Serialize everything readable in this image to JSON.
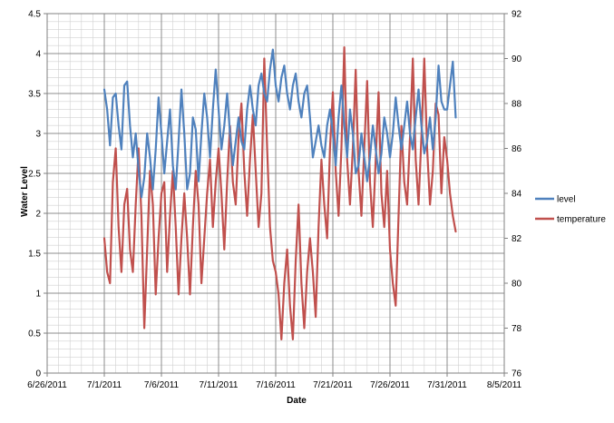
{
  "chart_data": {
    "type": "line",
    "title": "",
    "xlabel": "Date",
    "ylabel": "Water Level",
    "y2label": "",
    "grid": true,
    "legend_placement": "right",
    "xlim": [
      "6/26/2011",
      "8/5/2011"
    ],
    "ylim": [
      0,
      4.5
    ],
    "y2lim": [
      76,
      92
    ],
    "x_ticks": [
      "6/26/2011",
      "7/1/2011",
      "7/6/2011",
      "7/11/2011",
      "7/16/2011",
      "7/21/2011",
      "7/26/2011",
      "7/31/2011",
      "8/5/2011"
    ],
    "y_ticks": [
      "0",
      "0.5",
      "1",
      "1.5",
      "2",
      "2.5",
      "3",
      "3.5",
      "4",
      "4.5"
    ],
    "y2_ticks": [
      "76",
      "78",
      "80",
      "82",
      "84",
      "86",
      "88",
      "90",
      "92"
    ],
    "series": [
      {
        "name": "level",
        "axis": "left",
        "color": "#4F81BD",
        "points": [
          [
            "7/1/2011 00:00",
            3.55
          ],
          [
            "7/1/2011 06:00",
            3.3
          ],
          [
            "7/1/2011 12:00",
            2.85
          ],
          [
            "7/1/2011 18:00",
            3.45
          ],
          [
            "7/2/2011 00:00",
            3.5
          ],
          [
            "7/2/2011 06:00",
            3.1
          ],
          [
            "7/2/2011 12:00",
            2.8
          ],
          [
            "7/2/2011 18:00",
            3.6
          ],
          [
            "7/3/2011 00:00",
            3.65
          ],
          [
            "7/3/2011 06:00",
            3.1
          ],
          [
            "7/3/2011 12:00",
            2.7
          ],
          [
            "7/3/2011 18:00",
            3.0
          ],
          [
            "7/4/2011 00:00",
            2.55
          ],
          [
            "7/4/2011 06:00",
            2.2
          ],
          [
            "7/4/2011 12:00",
            2.45
          ],
          [
            "7/4/2011 18:00",
            3.0
          ],
          [
            "7/5/2011 00:00",
            2.7
          ],
          [
            "7/5/2011 06:00",
            2.3
          ],
          [
            "7/5/2011 12:00",
            2.8
          ],
          [
            "7/5/2011 18:00",
            3.45
          ],
          [
            "7/6/2011 00:00",
            3.0
          ],
          [
            "7/6/2011 06:00",
            2.5
          ],
          [
            "7/6/2011 12:00",
            2.9
          ],
          [
            "7/6/2011 18:00",
            3.3
          ],
          [
            "7/7/2011 00:00",
            2.6
          ],
          [
            "7/7/2011 06:00",
            2.3
          ],
          [
            "7/7/2011 12:00",
            2.9
          ],
          [
            "7/7/2011 18:00",
            3.55
          ],
          [
            "7/8/2011 00:00",
            3.0
          ],
          [
            "7/8/2011 06:00",
            2.3
          ],
          [
            "7/8/2011 12:00",
            2.5
          ],
          [
            "7/8/2011 18:00",
            3.2
          ],
          [
            "7/9/2011 00:00",
            3.05
          ],
          [
            "7/9/2011 06:00",
            2.4
          ],
          [
            "7/9/2011 12:00",
            3.0
          ],
          [
            "7/9/2011 18:00",
            3.5
          ],
          [
            "7/10/2011 00:00",
            3.2
          ],
          [
            "7/10/2011 06:00",
            2.7
          ],
          [
            "7/10/2011 12:00",
            3.3
          ],
          [
            "7/10/2011 18:00",
            3.8
          ],
          [
            "7/11/2011 00:00",
            3.3
          ],
          [
            "7/11/2011 06:00",
            2.8
          ],
          [
            "7/11/2011 12:00",
            3.1
          ],
          [
            "7/11/2011 18:00",
            3.5
          ],
          [
            "7/12/2011 00:00",
            3.0
          ],
          [
            "7/12/2011 06:00",
            2.6
          ],
          [
            "7/12/2011 12:00",
            2.9
          ],
          [
            "7/12/2011 18:00",
            3.2
          ],
          [
            "7/13/2011 00:00",
            2.9
          ],
          [
            "7/13/2011 06:00",
            2.8
          ],
          [
            "7/13/2011 12:00",
            3.3
          ],
          [
            "7/13/2011 18:00",
            3.6
          ],
          [
            "7/14/2011 00:00",
            3.3
          ],
          [
            "7/14/2011 06:00",
            3.1
          ],
          [
            "7/14/2011 12:00",
            3.6
          ],
          [
            "7/14/2011 18:00",
            3.75
          ],
          [
            "7/15/2011 00:00",
            3.5
          ],
          [
            "7/15/2011 06:00",
            3.4
          ],
          [
            "7/15/2011 12:00",
            3.8
          ],
          [
            "7/15/2011 18:00",
            4.05
          ],
          [
            "7/16/2011 00:00",
            3.6
          ],
          [
            "7/16/2011 06:00",
            3.4
          ],
          [
            "7/16/2011 12:00",
            3.7
          ],
          [
            "7/16/2011 18:00",
            3.85
          ],
          [
            "7/17/2011 00:00",
            3.5
          ],
          [
            "7/17/2011 06:00",
            3.3
          ],
          [
            "7/17/2011 12:00",
            3.6
          ],
          [
            "7/17/2011 18:00",
            3.75
          ],
          [
            "7/18/2011 00:00",
            3.4
          ],
          [
            "7/18/2011 06:00",
            3.2
          ],
          [
            "7/18/2011 12:00",
            3.5
          ],
          [
            "7/18/2011 18:00",
            3.6
          ],
          [
            "7/19/2011 00:00",
            3.2
          ],
          [
            "7/19/2011 06:00",
            2.7
          ],
          [
            "7/19/2011 12:00",
            2.9
          ],
          [
            "7/19/2011 18:00",
            3.1
          ],
          [
            "7/20/2011 00:00",
            2.85
          ],
          [
            "7/20/2011 06:00",
            2.7
          ],
          [
            "7/20/2011 12:00",
            3.1
          ],
          [
            "7/20/2011 18:00",
            3.3
          ],
          [
            "7/21/2011 00:00",
            3.0
          ],
          [
            "7/21/2011 06:00",
            2.6
          ],
          [
            "7/21/2011 12:00",
            3.2
          ],
          [
            "7/21/2011 18:00",
            3.6
          ],
          [
            "7/22/2011 00:00",
            3.1
          ],
          [
            "7/22/2011 06:00",
            2.7
          ],
          [
            "7/22/2011 12:00",
            3.3
          ],
          [
            "7/22/2011 18:00",
            3.0
          ],
          [
            "7/23/2011 00:00",
            2.5
          ],
          [
            "7/23/2011 06:00",
            2.6
          ],
          [
            "7/23/2011 12:00",
            3.0
          ],
          [
            "7/23/2011 18:00",
            2.7
          ],
          [
            "7/24/2011 00:00",
            2.4
          ],
          [
            "7/24/2011 06:00",
            2.7
          ],
          [
            "7/24/2011 12:00",
            3.1
          ],
          [
            "7/24/2011 18:00",
            2.8
          ],
          [
            "7/25/2011 00:00",
            2.5
          ],
          [
            "7/25/2011 06:00",
            2.75
          ],
          [
            "7/25/2011 12:00",
            3.2
          ],
          [
            "7/25/2011 18:00",
            3.0
          ],
          [
            "7/26/2011 00:00",
            2.7
          ],
          [
            "7/26/2011 06:00",
            3.0
          ],
          [
            "7/26/2011 12:00",
            3.45
          ],
          [
            "7/26/2011 18:00",
            3.1
          ],
          [
            "7/27/2011 00:00",
            2.8
          ],
          [
            "7/27/2011 06:00",
            3.1
          ],
          [
            "7/27/2011 12:00",
            3.4
          ],
          [
            "7/27/2011 18:00",
            3.0
          ],
          [
            "7/28/2011 00:00",
            2.8
          ],
          [
            "7/28/2011 06:00",
            3.2
          ],
          [
            "7/28/2011 12:00",
            3.55
          ],
          [
            "7/28/2011 18:00",
            3.1
          ],
          [
            "7/29/2011 00:00",
            2.75
          ],
          [
            "7/29/2011 06:00",
            2.9
          ],
          [
            "7/29/2011 12:00",
            3.2
          ],
          [
            "7/29/2011 18:00",
            2.8
          ],
          [
            "7/30/2011 00:00",
            3.2
          ],
          [
            "7/30/2011 06:00",
            3.85
          ],
          [
            "7/30/2011 12:00",
            3.4
          ],
          [
            "7/30/2011 18:00",
            3.3
          ],
          [
            "7/31/2011 00:00",
            3.3
          ],
          [
            "7/31/2011 06:00",
            3.6
          ],
          [
            "7/31/2011 12:00",
            3.9
          ],
          [
            "7/31/2011 18:00",
            3.2
          ]
        ]
      },
      {
        "name": "temperature",
        "axis": "right",
        "color": "#C0504D",
        "points": [
          [
            "7/1/2011 00:00",
            82.0
          ],
          [
            "7/1/2011 06:00",
            80.5
          ],
          [
            "7/1/2011 12:00",
            80.0
          ],
          [
            "7/1/2011 18:00",
            84.5
          ],
          [
            "7/2/2011 00:00",
            86.0
          ],
          [
            "7/2/2011 06:00",
            82.5
          ],
          [
            "7/2/2011 12:00",
            80.5
          ],
          [
            "7/2/2011 18:00",
            83.5
          ],
          [
            "7/3/2011 00:00",
            84.2
          ],
          [
            "7/3/2011 06:00",
            81.5
          ],
          [
            "7/3/2011 12:00",
            80.5
          ],
          [
            "7/3/2011 18:00",
            83.5
          ],
          [
            "7/4/2011 00:00",
            86.0
          ],
          [
            "7/4/2011 06:00",
            83.0
          ],
          [
            "7/4/2011 12:00",
            78.0
          ],
          [
            "7/4/2011 18:00",
            81.5
          ],
          [
            "7/5/2011 00:00",
            85.0
          ],
          [
            "7/5/2011 06:00",
            83.5
          ],
          [
            "7/5/2011 12:00",
            79.5
          ],
          [
            "7/5/2011 18:00",
            82.0
          ],
          [
            "7/6/2011 00:00",
            84.0
          ],
          [
            "7/6/2011 06:00",
            84.5
          ],
          [
            "7/6/2011 12:00",
            80.5
          ],
          [
            "7/6/2011 18:00",
            83.0
          ],
          [
            "7/7/2011 00:00",
            85.0
          ],
          [
            "7/7/2011 06:00",
            82.5
          ],
          [
            "7/7/2011 12:00",
            79.5
          ],
          [
            "7/7/2011 18:00",
            82.0
          ],
          [
            "7/8/2011 00:00",
            84.0
          ],
          [
            "7/8/2011 06:00",
            82.0
          ],
          [
            "7/8/2011 12:00",
            79.5
          ],
          [
            "7/8/2011 18:00",
            82.5
          ],
          [
            "7/9/2011 00:00",
            85.0
          ],
          [
            "7/9/2011 06:00",
            83.5
          ],
          [
            "7/9/2011 12:00",
            80.0
          ],
          [
            "7/9/2011 18:00",
            82.0
          ],
          [
            "7/10/2011 00:00",
            84.0
          ],
          [
            "7/10/2011 06:00",
            85.5
          ],
          [
            "7/10/2011 12:00",
            82.5
          ],
          [
            "7/10/2011 18:00",
            84.5
          ],
          [
            "7/11/2011 00:00",
            86.0
          ],
          [
            "7/11/2011 06:00",
            84.0
          ],
          [
            "7/11/2011 12:00",
            81.5
          ],
          [
            "7/11/2011 18:00",
            84.5
          ],
          [
            "7/12/2011 00:00",
            87.0
          ],
          [
            "7/12/2011 06:00",
            84.5
          ],
          [
            "7/12/2011 12:00",
            83.5
          ],
          [
            "7/12/2011 18:00",
            86.5
          ],
          [
            "7/13/2011 00:00",
            88.0
          ],
          [
            "7/13/2011 06:00",
            85.0
          ],
          [
            "7/13/2011 12:00",
            83.0
          ],
          [
            "7/13/2011 18:00",
            85.5
          ],
          [
            "7/14/2011 00:00",
            87.5
          ],
          [
            "7/14/2011 06:00",
            85.0
          ],
          [
            "7/14/2011 12:00",
            82.5
          ],
          [
            "7/14/2011 18:00",
            84.0
          ],
          [
            "7/15/2011 00:00",
            90.0
          ],
          [
            "7/15/2011 06:00",
            86.0
          ],
          [
            "7/15/2011 12:00",
            82.5
          ],
          [
            "7/15/2011 18:00",
            81.0
          ],
          [
            "7/16/2011 00:00",
            80.5
          ],
          [
            "7/16/2011 06:00",
            79.5
          ],
          [
            "7/16/2011 12:00",
            77.5
          ],
          [
            "7/16/2011 18:00",
            80.0
          ],
          [
            "7/17/2011 00:00",
            81.5
          ],
          [
            "7/17/2011 06:00",
            79.0
          ],
          [
            "7/17/2011 12:00",
            77.5
          ],
          [
            "7/17/2011 18:00",
            81.0
          ],
          [
            "7/18/2011 00:00",
            83.5
          ],
          [
            "7/18/2011 06:00",
            80.0
          ],
          [
            "7/18/2011 12:00",
            78.0
          ],
          [
            "7/18/2011 18:00",
            80.5
          ],
          [
            "7/19/2011 00:00",
            82.0
          ],
          [
            "7/19/2011 06:00",
            80.5
          ],
          [
            "7/19/2011 12:00",
            78.5
          ],
          [
            "7/19/2011 18:00",
            82.5
          ],
          [
            "7/20/2011 00:00",
            85.5
          ],
          [
            "7/20/2011 06:00",
            83.5
          ],
          [
            "7/20/2011 12:00",
            82.0
          ],
          [
            "7/20/2011 18:00",
            86.0
          ],
          [
            "7/21/2011 00:00",
            88.5
          ],
          [
            "7/21/2011 06:00",
            85.0
          ],
          [
            "7/21/2011 12:00",
            83.0
          ],
          [
            "7/21/2011 18:00",
            86.0
          ],
          [
            "7/22/2011 00:00",
            90.5
          ],
          [
            "7/22/2011 06:00",
            85.5
          ],
          [
            "7/22/2011 12:00",
            83.5
          ],
          [
            "7/22/2011 18:00",
            86.0
          ],
          [
            "7/23/2011 00:00",
            89.5
          ],
          [
            "7/23/2011 06:00",
            85.0
          ],
          [
            "7/23/2011 12:00",
            83.0
          ],
          [
            "7/23/2011 18:00",
            86.0
          ],
          [
            "7/24/2011 00:00",
            89.0
          ],
          [
            "7/24/2011 06:00",
            84.5
          ],
          [
            "7/24/2011 12:00",
            82.5
          ],
          [
            "7/24/2011 18:00",
            85.5
          ],
          [
            "7/25/2011 00:00",
            88.5
          ],
          [
            "7/25/2011 06:00",
            84.0
          ],
          [
            "7/25/2011 12:00",
            82.5
          ],
          [
            "7/25/2011 18:00",
            85.0
          ],
          [
            "7/26/2011 00:00",
            81.5
          ],
          [
            "7/26/2011 06:00",
            80.0
          ],
          [
            "7/26/2011 12:00",
            79.0
          ],
          [
            "7/26/2011 18:00",
            83.0
          ],
          [
            "7/27/2011 00:00",
            87.0
          ],
          [
            "7/27/2011 06:00",
            84.5
          ],
          [
            "7/27/2011 12:00",
            83.5
          ],
          [
            "7/27/2011 18:00",
            86.5
          ],
          [
            "7/28/2011 00:00",
            90.0
          ],
          [
            "7/28/2011 06:00",
            85.5
          ],
          [
            "7/28/2011 12:00",
            83.5
          ],
          [
            "7/28/2011 18:00",
            86.5
          ],
          [
            "7/29/2011 00:00",
            90.0
          ],
          [
            "7/29/2011 06:00",
            86.0
          ],
          [
            "7/29/2011 12:00",
            83.5
          ],
          [
            "7/29/2011 18:00",
            85.0
          ],
          [
            "7/30/2011 00:00",
            88.0
          ],
          [
            "7/30/2011 06:00",
            87.5
          ],
          [
            "7/30/2011 12:00",
            84.0
          ],
          [
            "7/30/2011 18:00",
            86.5
          ],
          [
            "7/31/2011 00:00",
            85.5
          ],
          [
            "7/31/2011 06:00",
            84.0
          ],
          [
            "7/31/2011 12:00",
            83.0
          ],
          [
            "7/31/2011 18:00",
            82.3
          ]
        ]
      }
    ]
  }
}
